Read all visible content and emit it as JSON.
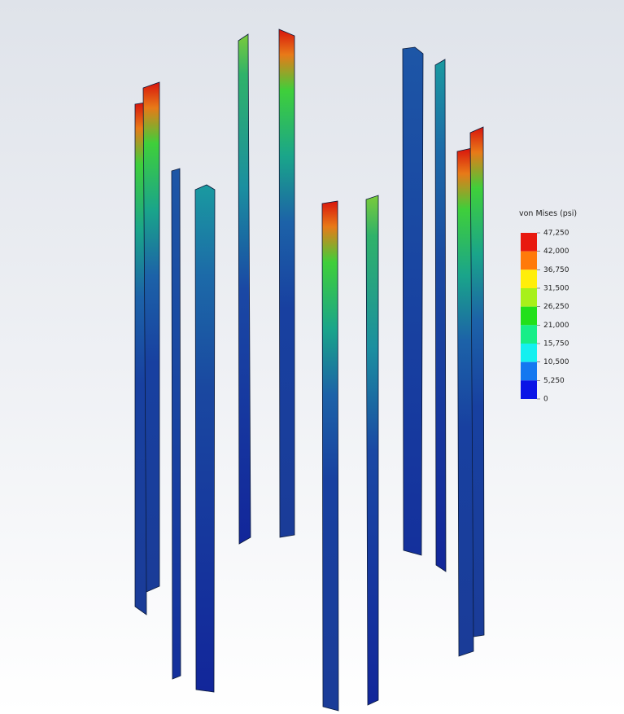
{
  "legend": {
    "title": "von Mises (psi)",
    "labels": [
      "47,250",
      "42,000",
      "36,750",
      "31,500",
      "26,250",
      "21,000",
      "15,750",
      "10,500",
      "5,250",
      "0"
    ],
    "colors": [
      "#e8190f",
      "#ff7a0a",
      "#ffee0a",
      "#a8f01a",
      "#22e01a",
      "#16ee88",
      "#14f0f0",
      "#1478f0",
      "#0a14e6"
    ]
  }
}
